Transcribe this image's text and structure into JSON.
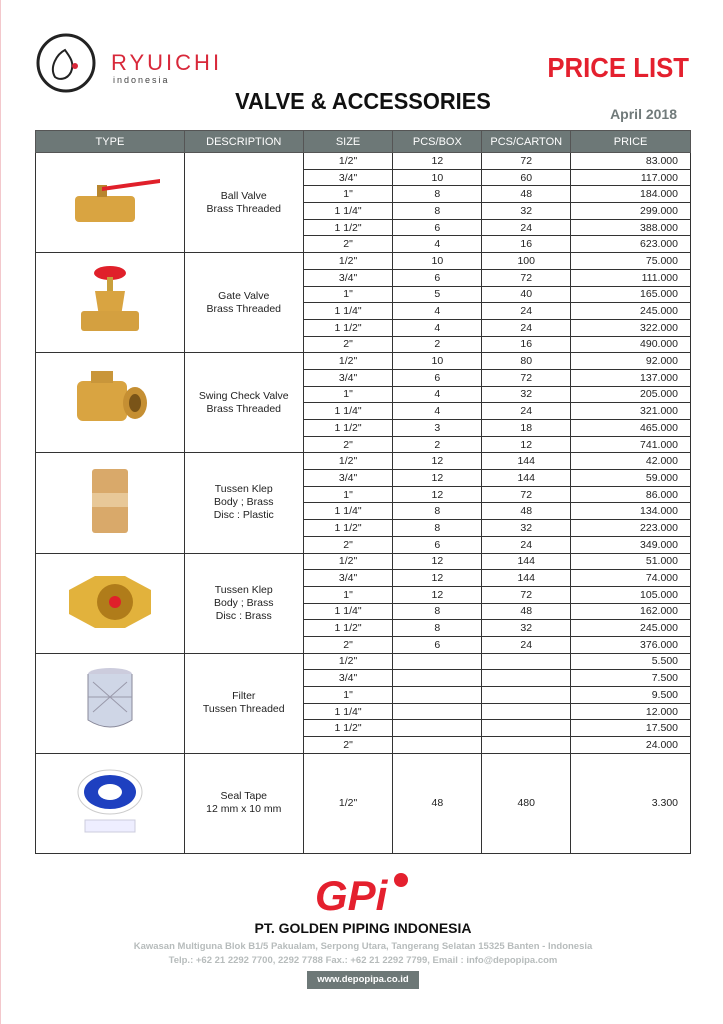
{
  "header": {
    "brand": "RYUICHI",
    "brand_sub": "indonesia",
    "doc_type": "PRICE LIST",
    "title": "VALVE & ACCESSORIES",
    "date": "April 2018"
  },
  "colors": {
    "accent": "#e4202e",
    "header_bg": "#6d7877"
  },
  "table": {
    "columns": [
      "TYPE",
      "DESCRIPTION",
      "SIZE",
      "PCS/BOX",
      "PCS/CARTON",
      "PRICE"
    ],
    "groups": [
      {
        "icon": "ball-valve-image",
        "description": [
          "Ball Valve",
          "Brass Threaded"
        ],
        "rows": [
          [
            "1/2\"",
            "12",
            "72",
            "83.000"
          ],
          [
            "3/4\"",
            "10",
            "60",
            "117.000"
          ],
          [
            "1\"",
            "8",
            "48",
            "184.000"
          ],
          [
            "1 1/4\"",
            "8",
            "32",
            "299.000"
          ],
          [
            "1 1/2\"",
            "6",
            "24",
            "388.000"
          ],
          [
            "2\"",
            "4",
            "16",
            "623.000"
          ]
        ]
      },
      {
        "icon": "gate-valve-image",
        "description": [
          "Gate Valve",
          "Brass Threaded"
        ],
        "rows": [
          [
            "1/2\"",
            "10",
            "100",
            "75.000"
          ],
          [
            "3/4\"",
            "6",
            "72",
            "111.000"
          ],
          [
            "1\"",
            "5",
            "40",
            "165.000"
          ],
          [
            "1 1/4\"",
            "4",
            "24",
            "245.000"
          ],
          [
            "1 1/2\"",
            "4",
            "24",
            "322.000"
          ],
          [
            "2\"",
            "2",
            "16",
            "490.000"
          ]
        ]
      },
      {
        "icon": "swing-check-valve-image",
        "description": [
          "Swing Check Valve",
          "Brass Threaded"
        ],
        "rows": [
          [
            "1/2\"",
            "10",
            "80",
            "92.000"
          ],
          [
            "3/4\"",
            "6",
            "72",
            "137.000"
          ],
          [
            "1\"",
            "4",
            "32",
            "205.000"
          ],
          [
            "1 1/4\"",
            "4",
            "24",
            "321.000"
          ],
          [
            "1 1/2\"",
            "3",
            "18",
            "465.000"
          ],
          [
            "2\"",
            "2",
            "12",
            "741.000"
          ]
        ]
      },
      {
        "icon": "tussen-klep-plastic-image",
        "description": [
          "Tussen Klep",
          "Body ; Brass",
          "Disc : Plastic"
        ],
        "rows": [
          [
            "1/2\"",
            "12",
            "144",
            "42.000"
          ],
          [
            "3/4\"",
            "12",
            "144",
            "59.000"
          ],
          [
            "1\"",
            "12",
            "72",
            "86.000"
          ],
          [
            "1 1/4\"",
            "8",
            "48",
            "134.000"
          ],
          [
            "1 1/2\"",
            "8",
            "32",
            "223.000"
          ],
          [
            "2\"",
            "6",
            "24",
            "349.000"
          ]
        ]
      },
      {
        "icon": "tussen-klep-brass-image",
        "description": [
          "Tussen Klep",
          "Body ; Brass",
          "Disc : Brass"
        ],
        "rows": [
          [
            "1/2\"",
            "12",
            "144",
            "51.000"
          ],
          [
            "3/4\"",
            "12",
            "144",
            "74.000"
          ],
          [
            "1\"",
            "12",
            "72",
            "105.000"
          ],
          [
            "1 1/4\"",
            "8",
            "48",
            "162.000"
          ],
          [
            "1 1/2\"",
            "8",
            "32",
            "245.000"
          ],
          [
            "2\"",
            "6",
            "24",
            "376.000"
          ]
        ]
      },
      {
        "icon": "filter-image",
        "description": [
          "Filter",
          "Tussen Threaded"
        ],
        "rows": [
          [
            "1/2\"",
            "",
            "",
            "5.500"
          ],
          [
            "3/4\"",
            "",
            "",
            "7.500"
          ],
          [
            "1\"",
            "",
            "",
            "9.500"
          ],
          [
            "1 1/4\"",
            "",
            "",
            "12.000"
          ],
          [
            "1 1/2\"",
            "",
            "",
            "17.500"
          ],
          [
            "2\"",
            "",
            "",
            "24.000"
          ]
        ]
      },
      {
        "icon": "seal-tape-image",
        "description": [
          "Seal Tape",
          "12 mm x 10 mm"
        ],
        "rows": [
          [
            "1/2\"",
            "48",
            "480",
            "3.300"
          ]
        ],
        "tall": true
      }
    ]
  },
  "footer": {
    "logo": "GPi",
    "company": "PT. GOLDEN PIPING INDONESIA",
    "address": "Kawasan Multiguna Blok B1/5 Pakualam, Serpong Utara, Tangerang Selatan 15325 Banten - Indonesia",
    "contact": "Telp.: +62 21 2292 7700, 2292 7788  Fax.: +62 21 2292 7799, Email : info@depopipa.com",
    "website": "www.depopipa.co.id"
  }
}
